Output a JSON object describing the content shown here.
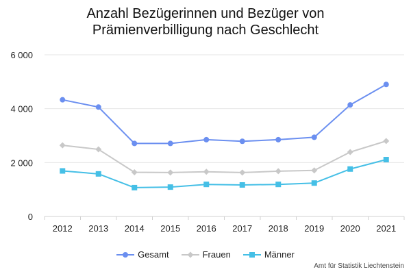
{
  "chart_data": {
    "type": "line",
    "title_lines": [
      "Anzahl Bezügerinnen und Bezüger von",
      "Prämienverbilligung nach Geschlecht"
    ],
    "x": [
      "2012",
      "2013",
      "2014",
      "2015",
      "2016",
      "2017",
      "2018",
      "2019",
      "2020",
      "2021"
    ],
    "ylim": [
      0,
      6000
    ],
    "yticks": [
      0,
      2000,
      4000,
      6000
    ],
    "ytick_labels": [
      "0",
      "2 000",
      "4 000",
      "6 000"
    ],
    "grid": true,
    "legend_position": "bottom",
    "series": [
      {
        "name": "Gesamt",
        "color": "#6b8ff0",
        "marker": "circle",
        "values": [
          4330,
          4060,
          2710,
          2710,
          2850,
          2790,
          2850,
          2940,
          4140,
          4900
        ]
      },
      {
        "name": "Frauen",
        "color": "#c8c8c8",
        "marker": "diamond",
        "values": [
          2640,
          2490,
          1640,
          1630,
          1660,
          1630,
          1680,
          1710,
          2390,
          2800
        ]
      },
      {
        "name": "Männer",
        "color": "#45bfe6",
        "marker": "square",
        "values": [
          1690,
          1580,
          1070,
          1090,
          1190,
          1170,
          1190,
          1240,
          1760,
          2110
        ]
      }
    ]
  },
  "credit": "Amt für Statistik Liechtenstein"
}
